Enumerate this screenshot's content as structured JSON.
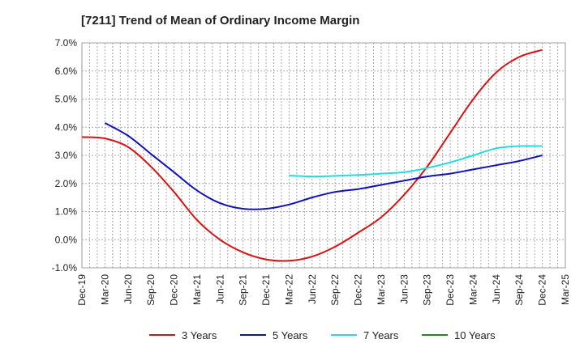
{
  "chart_data": {
    "type": "line",
    "title": "[7211]  Trend of Mean of Ordinary Income Margin",
    "xlabel": "",
    "ylabel": "",
    "x_ticks": [
      "Dec-19",
      "Mar-20",
      "Jun-20",
      "Sep-20",
      "Dec-20",
      "Mar-21",
      "Jun-21",
      "Sep-21",
      "Dec-21",
      "Mar-22",
      "Jun-22",
      "Sep-22",
      "Dec-22",
      "Mar-23",
      "Jun-23",
      "Sep-23",
      "Dec-23",
      "Mar-24",
      "Jun-24",
      "Sep-24",
      "Dec-24",
      "Mar-25"
    ],
    "y_ticks": [
      "-1.0%",
      "0.0%",
      "1.0%",
      "2.0%",
      "3.0%",
      "4.0%",
      "5.0%",
      "6.0%",
      "7.0%"
    ],
    "ylim": [
      -1.0,
      7.0
    ],
    "grid": true,
    "legend_position": "bottom",
    "series": [
      {
        "name": "3 Years",
        "color": "#dd1111",
        "x": [
          "Dec-19",
          "Mar-20",
          "Jun-20",
          "Sep-20",
          "Dec-20",
          "Mar-21",
          "Jun-21",
          "Sep-21",
          "Dec-21",
          "Mar-22",
          "Jun-22",
          "Sep-22",
          "Dec-22",
          "Mar-23",
          "Jun-23",
          "Sep-23",
          "Dec-23",
          "Mar-24",
          "Jun-24",
          "Sep-24",
          "Dec-24"
        ],
        "values": [
          3.65,
          3.6,
          3.3,
          2.6,
          1.7,
          0.7,
          0.0,
          -0.45,
          -0.7,
          -0.75,
          -0.6,
          -0.25,
          0.25,
          0.8,
          1.6,
          2.6,
          3.8,
          5.0,
          5.95,
          6.5,
          6.75
        ]
      },
      {
        "name": "5 Years",
        "color": "#1111bb",
        "x": [
          "Mar-20",
          "Jun-20",
          "Sep-20",
          "Dec-20",
          "Mar-21",
          "Jun-21",
          "Sep-21",
          "Dec-21",
          "Mar-22",
          "Jun-22",
          "Sep-22",
          "Dec-22",
          "Mar-23",
          "Jun-23",
          "Sep-23",
          "Dec-23",
          "Mar-24",
          "Jun-24",
          "Sep-24",
          "Dec-24"
        ],
        "values": [
          4.15,
          3.7,
          3.05,
          2.4,
          1.75,
          1.3,
          1.1,
          1.1,
          1.25,
          1.5,
          1.7,
          1.8,
          1.95,
          2.1,
          2.25,
          2.35,
          2.5,
          2.65,
          2.8,
          3.0
        ]
      },
      {
        "name": "7 Years",
        "color": "#22dddd",
        "x": [
          "Mar-22",
          "Jun-22",
          "Sep-22",
          "Dec-22",
          "Mar-23",
          "Jun-23",
          "Sep-23",
          "Dec-23",
          "Mar-24",
          "Jun-24",
          "Sep-24",
          "Dec-24"
        ],
        "values": [
          2.28,
          2.25,
          2.27,
          2.3,
          2.35,
          2.4,
          2.55,
          2.75,
          3.0,
          3.25,
          3.33,
          3.33
        ]
      },
      {
        "name": "10 Years",
        "color": "#228822",
        "x": [],
        "values": []
      }
    ]
  }
}
